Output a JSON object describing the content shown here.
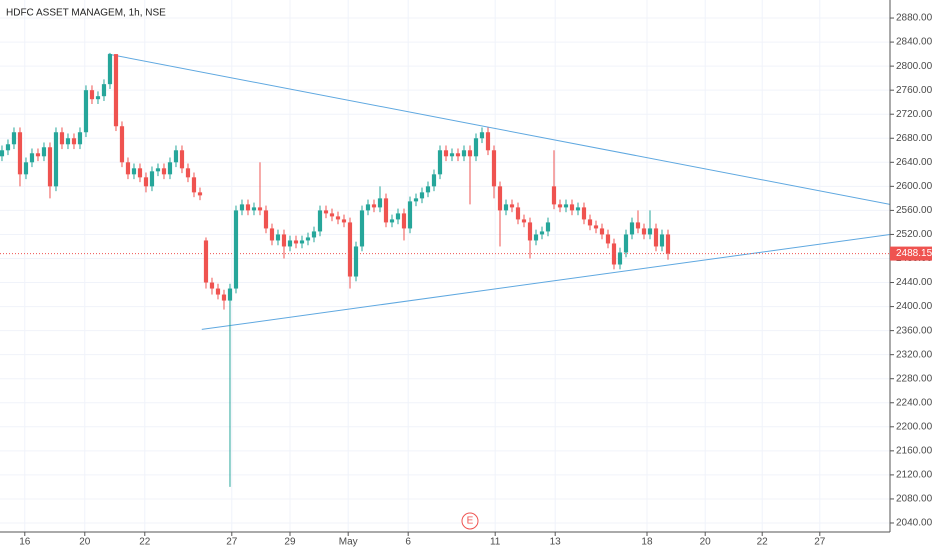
{
  "chart_data": {
    "type": "candlestick",
    "title": "HDFC ASSET MANAGEM, 1h, NSE",
    "up_color": "#26a69a",
    "down_color": "#ef5350",
    "grid": true,
    "ylim": [
      2025,
      2910
    ],
    "yticks": [
      {
        "value": 2040,
        "label": "2040.00"
      },
      {
        "value": 2080,
        "label": "2080.00"
      },
      {
        "value": 2120,
        "label": "2120.00"
      },
      {
        "value": 2160,
        "label": "2160.00"
      },
      {
        "value": 2200,
        "label": "2200.00"
      },
      {
        "value": 2240,
        "label": "2240.00"
      },
      {
        "value": 2280,
        "label": "2280.00"
      },
      {
        "value": 2320,
        "label": "2320.00"
      },
      {
        "value": 2360,
        "label": "2360.00"
      },
      {
        "value": 2400,
        "label": "2400.00"
      },
      {
        "value": 2440,
        "label": "2440.00"
      },
      {
        "value": 2480,
        "label": "2480.00"
      },
      {
        "value": 2520,
        "label": "2520.00"
      },
      {
        "value": 2560,
        "label": "2560.00"
      },
      {
        "value": 2600,
        "label": "2600.00"
      },
      {
        "value": 2640,
        "label": "2640.00"
      },
      {
        "value": 2680,
        "label": "2680.00"
      },
      {
        "value": 2720,
        "label": "2720.00"
      },
      {
        "value": 2760,
        "label": "2760.00"
      },
      {
        "value": 2800,
        "label": "2800.00"
      },
      {
        "value": 2840,
        "label": "2840.00"
      },
      {
        "value": 2880,
        "label": "2880.00"
      }
    ],
    "xlim": [
      -0.33,
      148
    ],
    "xticks": [
      {
        "value": 3.8,
        "label": "16"
      },
      {
        "value": 13.8,
        "label": "20"
      },
      {
        "value": 23.8,
        "label": "22"
      },
      {
        "value": 38.3,
        "label": "27"
      },
      {
        "value": 48,
        "label": "29"
      },
      {
        "value": 57.7,
        "label": "May"
      },
      {
        "value": 67.7,
        "label": "6"
      },
      {
        "value": 82.2,
        "label": "11"
      },
      {
        "value": 92.2,
        "label": "13"
      },
      {
        "value": 107.5,
        "label": "18"
      },
      {
        "value": 117.2,
        "label": "20"
      },
      {
        "value": 126.7,
        "label": "22"
      },
      {
        "value": 136.3,
        "label": "27"
      }
    ],
    "open": [
      2650,
      2660,
      2670,
      2690,
      2620,
      2640,
      2655,
      2650,
      2665,
      2600,
      2690,
      2670,
      2680,
      2670,
      2690,
      2760,
      2745,
      2750,
      2770,
      2820,
      2700,
      2640,
      2620,
      2630,
      2615,
      2600,
      2625,
      2630,
      2620,
      2640,
      2660,
      2630,
      2615,
      2590,
      2510,
      2440,
      2430,
      2420,
      2410,
      2430,
      2560,
      2570,
      2560,
      2565,
      2560,
      2530,
      2510,
      2520,
      2500,
      2510,
      2505,
      2510,
      2515,
      2525,
      2560,
      2555,
      2550,
      2545,
      2540,
      2450,
      2500,
      2560,
      2570,
      2565,
      2580,
      2540,
      2545,
      2555,
      2530,
      2575,
      2580,
      2590,
      2600,
      2620,
      2660,
      2650,
      2655,
      2650,
      2660,
      2650,
      2680,
      2690,
      2660,
      2600,
      2560,
      2570,
      2565,
      2545,
      2540,
      2510,
      2520,
      2525,
      2600,
      2570,
      2565,
      2570,
      2560,
      2565,
      2545,
      2535,
      2530,
      2520,
      2505,
      2470,
      2490,
      2520,
      2540,
      2530,
      2520,
      2530,
      2500,
      2520
    ],
    "high": [
      2668,
      2678,
      2698,
      2698,
      2648,
      2663,
      2663,
      2673,
      2673,
      2698,
      2698,
      2688,
      2688,
      2698,
      2768,
      2768,
      2758,
      2778,
      2822,
      2820,
      2708,
      2648,
      2638,
      2638,
      2623,
      2633,
      2638,
      2638,
      2648,
      2668,
      2668,
      2638,
      2623,
      2598,
      2515,
      2448,
      2438,
      2428,
      2438,
      2568,
      2578,
      2578,
      2573,
      2640,
      2568,
      2538,
      2528,
      2528,
      2518,
      2518,
      2518,
      2523,
      2533,
      2568,
      2568,
      2563,
      2558,
      2553,
      2548,
      2508,
      2568,
      2578,
      2578,
      2600,
      2588,
      2553,
      2563,
      2563,
      2583,
      2588,
      2598,
      2608,
      2628,
      2668,
      2668,
      2663,
      2663,
      2668,
      2668,
      2688,
      2698,
      2698,
      2668,
      2608,
      2578,
      2578,
      2573,
      2553,
      2548,
      2528,
      2533,
      2548,
      2660,
      2578,
      2578,
      2578,
      2573,
      2573,
      2553,
      2543,
      2538,
      2528,
      2513,
      2498,
      2528,
      2548,
      2560,
      2538,
      2560,
      2538,
      2528,
      2528
    ],
    "low": [
      2642,
      2652,
      2662,
      2600,
      2612,
      2632,
      2642,
      2642,
      2580,
      2592,
      2662,
      2662,
      2662,
      2662,
      2682,
      2737,
      2737,
      2742,
      2762,
      2692,
      2632,
      2612,
      2612,
      2607,
      2590,
      2592,
      2617,
      2612,
      2612,
      2632,
      2622,
      2607,
      2582,
      2577,
      2430,
      2420,
      2412,
      2395,
      2100,
      2422,
      2552,
      2552,
      2552,
      2552,
      2522,
      2502,
      2502,
      2480,
      2492,
      2497,
      2497,
      2502,
      2507,
      2517,
      2547,
      2542,
      2537,
      2532,
      2430,
      2442,
      2492,
      2552,
      2557,
      2557,
      2532,
      2532,
      2537,
      2510,
      2522,
      2567,
      2572,
      2582,
      2592,
      2612,
      2642,
      2642,
      2642,
      2642,
      2570,
      2642,
      2672,
      2652,
      2580,
      2500,
      2552,
      2557,
      2537,
      2532,
      2480,
      2502,
      2512,
      2517,
      2562,
      2557,
      2557,
      2552,
      2552,
      2537,
      2527,
      2522,
      2512,
      2497,
      2462,
      2462,
      2482,
      2512,
      2522,
      2512,
      2512,
      2492,
      2492,
      2478
    ],
    "close": [
      2660,
      2670,
      2690,
      2620,
      2640,
      2655,
      2650,
      2665,
      2600,
      2690,
      2670,
      2680,
      2670,
      2690,
      2760,
      2745,
      2750,
      2770,
      2820,
      2700,
      2640,
      2620,
      2630,
      2615,
      2600,
      2625,
      2630,
      2620,
      2640,
      2660,
      2630,
      2615,
      2590,
      2585,
      2440,
      2430,
      2420,
      2410,
      2430,
      2560,
      2570,
      2560,
      2565,
      2560,
      2530,
      2510,
      2520,
      2500,
      2510,
      2505,
      2510,
      2515,
      2525,
      2560,
      2555,
      2550,
      2545,
      2540,
      2450,
      2500,
      2560,
      2570,
      2565,
      2580,
      2540,
      2545,
      2555,
      2530,
      2575,
      2580,
      2590,
      2600,
      2620,
      2660,
      2650,
      2655,
      2650,
      2660,
      2650,
      2680,
      2690,
      2660,
      2600,
      2560,
      2570,
      2565,
      2545,
      2540,
      2510,
      2520,
      2525,
      2540,
      2570,
      2565,
      2570,
      2560,
      2565,
      2545,
      2535,
      2530,
      2520,
      2505,
      2470,
      2490,
      2520,
      2540,
      2530,
      2520,
      2530,
      2500,
      2520,
      2488.15
    ],
    "last_value_label": "2488.15",
    "trendlines": [
      {
        "color": "#5fa8e0",
        "x": [
          17.7,
          148
        ],
        "y": [
          2820,
          2570
        ]
      },
      {
        "color": "#5fa8e0",
        "x": [
          33.3,
          148
        ],
        "y": [
          2362,
          2520
        ]
      }
    ],
    "events": [
      {
        "x": 78,
        "label": "E"
      }
    ]
  }
}
